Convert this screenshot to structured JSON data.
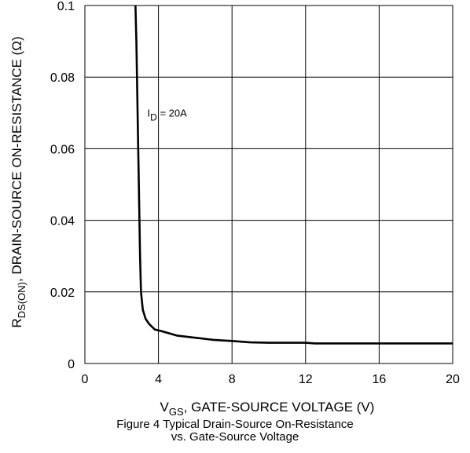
{
  "chart_data": {
    "type": "line",
    "title": "",
    "caption": [
      "Figure 4 Typical Drain-Source On-Resistance",
      "vs. Gate-Source Voltage"
    ],
    "xlabel": {
      "main": "V",
      "sub": "GS",
      "rest": ", GATE-SOURCE VOLTAGE (V)"
    },
    "ylabel": {
      "main": "R",
      "sub": "DS(ON)",
      "rest": ", DRAIN-SOURCE ON-RESISTANCE (Ω)"
    },
    "xlim": [
      0,
      20
    ],
    "ylim": [
      0,
      0.1
    ],
    "xticks": [
      0,
      4,
      8,
      12,
      16,
      20
    ],
    "xtick_labels": [
      "0",
      "4",
      "8",
      "12",
      "16",
      "20"
    ],
    "yticks": [
      0,
      0.02,
      0.04,
      0.06,
      0.08,
      0.1
    ],
    "ytick_labels": [
      "0",
      "0.02",
      "0.04",
      "0.06",
      "0.08",
      "0.1"
    ],
    "grid": true,
    "annotation": {
      "main": "I",
      "sub": "D",
      "rest": " = 20A",
      "x": 3.4,
      "y": 0.069
    },
    "series": [
      {
        "color": "#000000",
        "x": [
          2.75,
          2.8,
          2.85,
          2.9,
          2.95,
          3.0,
          3.05,
          3.15,
          3.3,
          3.5,
          3.8,
          4.2,
          5.0,
          6.0,
          7.0,
          8.0,
          9.0,
          10.0,
          12.0,
          12.5,
          14.0,
          16.0,
          18.0,
          20.0
        ],
        "y": [
          0.1,
          0.09,
          0.075,
          0.06,
          0.045,
          0.03,
          0.02,
          0.015,
          0.0125,
          0.011,
          0.0095,
          0.009,
          0.0078,
          0.0072,
          0.0066,
          0.0063,
          0.0059,
          0.0058,
          0.0058,
          0.0056,
          0.0056,
          0.0056,
          0.0056,
          0.0056
        ]
      }
    ]
  }
}
